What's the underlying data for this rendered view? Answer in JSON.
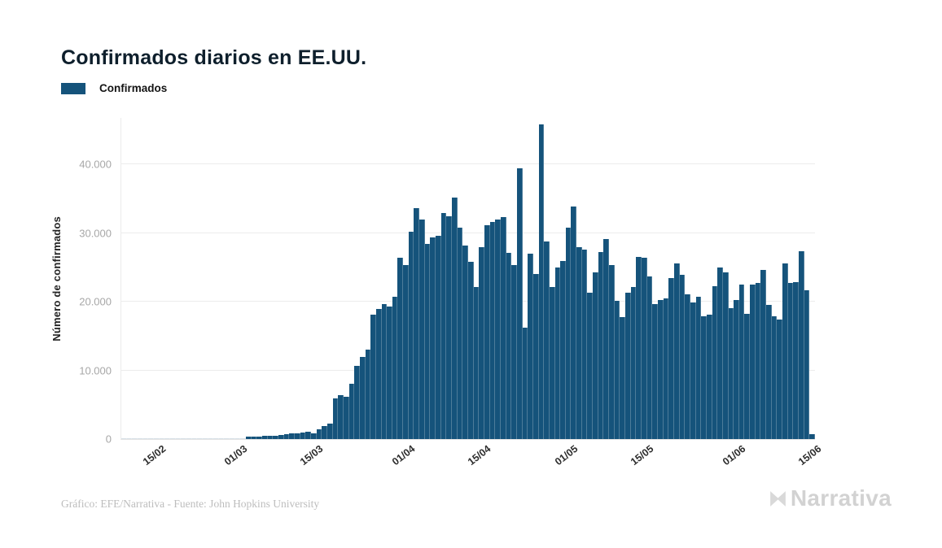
{
  "title": "Confirmados diarios en EE.UU.",
  "legend": {
    "label": "Confirmados",
    "color": "#15537b"
  },
  "y_axis": {
    "label": "Número de confirmados",
    "tick_labels": [
      "0",
      "10.000",
      "20.000",
      "30.000",
      "40.000"
    ],
    "tick_values": [
      0,
      10000,
      20000,
      30000,
      40000
    ]
  },
  "x_axis": {
    "ticks": [
      {
        "index": 6,
        "label": "15/02"
      },
      {
        "index": 21,
        "label": "01/03"
      },
      {
        "index": 35,
        "label": "15/03"
      },
      {
        "index": 52,
        "label": "01/04"
      },
      {
        "index": 66,
        "label": "15/04"
      },
      {
        "index": 82,
        "label": "01/05"
      },
      {
        "index": 96,
        "label": "15/05"
      },
      {
        "index": 113,
        "label": "01/06"
      },
      {
        "index": 127,
        "label": "15/06"
      }
    ]
  },
  "footer": {
    "credit": "Gráfico: EFE/Narrativa - Fuente: John Hopkins University",
    "brand": "Narrativa"
  },
  "chart_data": {
    "type": "bar",
    "title": "Confirmados diarios en EE.UU.",
    "series_name": "Confirmados",
    "ylabel": "Número de confirmados",
    "ylim": [
      0,
      46800
    ],
    "grid": true,
    "legend_position": "top-left",
    "bar_color": "#15537b",
    "x": [
      "09/02",
      "10/02",
      "11/02",
      "12/02",
      "13/02",
      "14/02",
      "15/02",
      "16/02",
      "17/02",
      "18/02",
      "19/02",
      "20/02",
      "21/02",
      "22/02",
      "23/02",
      "24/02",
      "25/02",
      "26/02",
      "27/02",
      "28/02",
      "29/02",
      "01/03",
      "02/03",
      "03/03",
      "04/03",
      "05/03",
      "06/03",
      "07/03",
      "08/03",
      "09/03",
      "10/03",
      "11/03",
      "12/03",
      "13/03",
      "14/03",
      "15/03",
      "16/03",
      "17/03",
      "18/03",
      "19/03",
      "20/03",
      "21/03",
      "22/03",
      "23/03",
      "24/03",
      "25/03",
      "26/03",
      "27/03",
      "28/03",
      "29/03",
      "30/03",
      "31/03",
      "01/04",
      "02/04",
      "03/04",
      "04/04",
      "05/04",
      "06/04",
      "07/04",
      "08/04",
      "09/04",
      "10/04",
      "11/04",
      "12/04",
      "13/04",
      "14/04",
      "15/04",
      "16/04",
      "17/04",
      "18/04",
      "19/04",
      "20/04",
      "21/04",
      "22/04",
      "23/04",
      "24/04",
      "25/04",
      "26/04",
      "27/04",
      "28/04",
      "29/04",
      "30/04",
      "01/05",
      "02/05",
      "03/05",
      "04/05",
      "05/05",
      "06/05",
      "07/05",
      "08/05",
      "09/05",
      "10/05",
      "11/05",
      "12/05",
      "13/05",
      "14/05",
      "15/05",
      "16/05",
      "17/05",
      "18/05",
      "19/05",
      "20/05",
      "21/05",
      "22/05",
      "23/05",
      "24/05",
      "25/05",
      "26/05",
      "27/05",
      "28/05",
      "29/05",
      "30/05",
      "31/05",
      "01/06",
      "02/06",
      "03/06",
      "04/06",
      "05/06",
      "06/06",
      "07/06",
      "08/06",
      "09/06",
      "10/06",
      "11/06",
      "12/06",
      "13/06",
      "14/06",
      "15/06"
    ],
    "values": [
      0,
      0,
      0,
      0,
      0,
      0,
      0,
      0,
      0,
      0,
      0,
      0,
      0,
      0,
      0,
      0,
      0,
      0,
      0,
      0,
      10,
      30,
      60,
      300,
      390,
      300,
      470,
      510,
      470,
      590,
      700,
      790,
      870,
      990,
      1100,
      870,
      1380,
      1900,
      2290,
      5900,
      6400,
      6200,
      8100,
      10650,
      12000,
      13000,
      18100,
      18900,
      19700,
      19300,
      20700,
      26400,
      25400,
      30200,
      33600,
      32000,
      28400,
      29400,
      29600,
      32900,
      32500,
      35200,
      30800,
      28200,
      25800,
      22200,
      28000,
      31200,
      31600,
      32000,
      32400,
      27100,
      25400,
      39400,
      16200,
      27000,
      24100,
      45800,
      28800,
      22100,
      25000,
      26000,
      30800,
      33900,
      28000,
      27600,
      21300,
      24300,
      27200,
      29200,
      25400,
      20100,
      17800,
      21300,
      22100,
      26600,
      26400,
      23700,
      19700,
      20300,
      20500,
      23500,
      25600,
      23900,
      21100,
      19900,
      20700,
      17900,
      18100,
      22300,
      25000,
      24300,
      19100,
      20300,
      22500,
      18300,
      22500,
      22700,
      24700,
      19500,
      17900,
      17400,
      25600,
      22700,
      22900,
      27400,
      21700,
      700
    ]
  }
}
